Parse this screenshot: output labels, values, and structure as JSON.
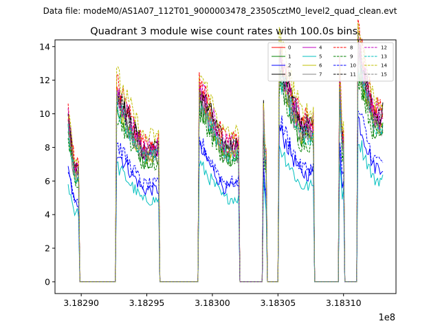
{
  "header": {
    "file_label": "Data file: modeM0/AS1A07_112T01_9000003478_23505cztM0_level2_quad_clean.evt"
  },
  "chart_data": {
    "type": "line",
    "title": "Quadrant 3 module wise count rates with 100.0s bins.",
    "xlabel": "",
    "ylabel": "",
    "x_offset_label": "1e8",
    "xlim": [
      3.18288,
      3.18314
    ],
    "ylim": [
      -0.7,
      14.4
    ],
    "x_ticks": [
      3.1829,
      3.18295,
      3.183,
      3.18305,
      3.1831
    ],
    "x_tick_labels": [
      "3.18290",
      "3.18295",
      "3.18300",
      "3.18305",
      "3.18310"
    ],
    "y_ticks": [
      0,
      2,
      4,
      6,
      8,
      10,
      12,
      14
    ],
    "y_tick_labels": [
      "0",
      "2",
      "4",
      "6",
      "8",
      "10",
      "12",
      "14"
    ],
    "legend_position": "top-right",
    "segments": [
      {
        "start": 3.18289,
        "end": 3.182898,
        "peak_mean": 7.4
      },
      {
        "start": 3.182927,
        "end": 3.182959,
        "peak_mean": 8.7
      },
      {
        "start": 3.18299,
        "end": 3.18302,
        "peak_mean": 8.9
      },
      {
        "start": 3.183039,
        "end": 3.183041,
        "peak_mean": 8.0
      },
      {
        "start": 3.183051,
        "end": 3.183077,
        "peak_mean": 10.2
      },
      {
        "start": 3.183097,
        "end": 3.1831,
        "peak_mean": 9.4
      },
      {
        "start": 3.183111,
        "end": 3.18313,
        "peak_mean": 10.9
      }
    ],
    "series": [
      {
        "name": "0",
        "color": "#ff0000",
        "dash": "solid",
        "scale": 1.0
      },
      {
        "name": "1",
        "color": "#008000",
        "dash": "solid",
        "scale": 0.92
      },
      {
        "name": "2",
        "color": "#0000ff",
        "dash": "solid",
        "scale": 0.7
      },
      {
        "name": "3",
        "color": "#000000",
        "dash": "solid",
        "scale": 1.02
      },
      {
        "name": "4",
        "color": "#bf00bf",
        "dash": "solid",
        "scale": 0.98
      },
      {
        "name": "5",
        "color": "#00bfbf",
        "dash": "solid",
        "scale": 0.62
      },
      {
        "name": "6",
        "color": "#bfbf00",
        "dash": "solid",
        "scale": 0.96
      },
      {
        "name": "7",
        "color": "#808080",
        "dash": "solid",
        "scale": 0.94
      },
      {
        "name": "8",
        "color": "#ff0000",
        "dash": "dashed",
        "scale": 1.06
      },
      {
        "name": "9",
        "color": "#008000",
        "dash": "dashed",
        "scale": 0.9
      },
      {
        "name": "10",
        "color": "#0000ff",
        "dash": "dashed",
        "scale": 0.74
      },
      {
        "name": "11",
        "color": "#000000",
        "dash": "dashed",
        "scale": 1.0
      },
      {
        "name": "12",
        "color": "#bf00bf",
        "dash": "dashed",
        "scale": 1.03
      },
      {
        "name": "13",
        "color": "#00bfbf",
        "dash": "dashed",
        "scale": 0.95
      },
      {
        "name": "14",
        "color": "#bfbf00",
        "dash": "dashed",
        "scale": 1.1
      },
      {
        "name": "15",
        "color": "#808080",
        "dash": "dashed",
        "scale": 0.97
      }
    ]
  }
}
